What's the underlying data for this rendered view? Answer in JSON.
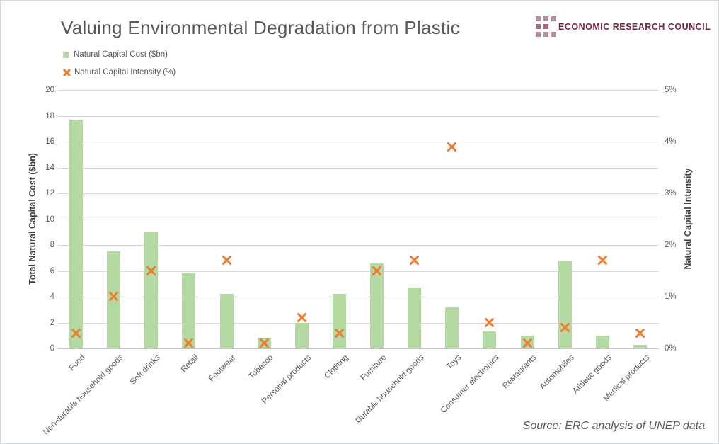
{
  "header": {
    "title": "Valuing Environmental Degradation from Plastic",
    "logo": {
      "text": "ECONOMIC RESEARCH COUNCIL",
      "text_color": "#7b2346",
      "square_light": "#b78d9d",
      "square_dark": "#a26a7d"
    }
  },
  "legend": {
    "items": [
      {
        "label": "Natural Capital Cost ($bn)",
        "marker": "square",
        "color": "#b5d9a2"
      },
      {
        "label": "Natural Capital Intensity (%)",
        "marker": "x",
        "color": "#ed7d31"
      }
    ]
  },
  "chart_data": {
    "type": "bar",
    "title": "Valuing Environmental Degradation from Plastic",
    "categories": [
      "Food",
      "Non-durable household goods",
      "Soft drinks",
      "Retail",
      "Footwear",
      "Tobacco",
      "Personal products",
      "Clothing",
      "Furniture",
      "Durable household goods",
      "Toys",
      "Consumer electronics",
      "Restaurants",
      "Automobiles",
      "Athletic goods",
      "Medical products"
    ],
    "series": [
      {
        "name": "Natural Capital Cost ($bn)",
        "type": "bar",
        "axis": "left",
        "color": "#b5d9a2",
        "values": [
          17.7,
          7.5,
          9.0,
          5.8,
          4.2,
          0.8,
          2.0,
          4.2,
          6.6,
          4.7,
          3.2,
          1.3,
          1.0,
          6.8,
          1.0,
          0.3
        ]
      },
      {
        "name": "Natural Capital Intensity (%)",
        "type": "scatter",
        "marker": "x",
        "axis": "right",
        "color": "#ed7d31",
        "values": [
          0.3,
          1.0,
          1.5,
          0.1,
          1.7,
          0.1,
          0.6,
          0.3,
          1.5,
          1.7,
          3.9,
          0.5,
          0.1,
          0.4,
          1.7,
          0.3
        ]
      }
    ],
    "left_axis": {
      "label": "Total Natural Capital Cost ($bn)",
      "min": 0,
      "max": 20,
      "tick_step": 2,
      "ticks": [
        "0",
        "2",
        "4",
        "6",
        "8",
        "10",
        "12",
        "14",
        "16",
        "18",
        "20"
      ]
    },
    "right_axis": {
      "label": "Natural Capital Intensity",
      "min": 0,
      "max": 5,
      "tick_step": 1,
      "ticks": [
        "0%",
        "1%",
        "2%",
        "3%",
        "4%",
        "5%"
      ]
    },
    "grid": true,
    "legend_position": "top-left"
  },
  "footer": {
    "source": "Source: ERC analysis of UNEP data"
  }
}
